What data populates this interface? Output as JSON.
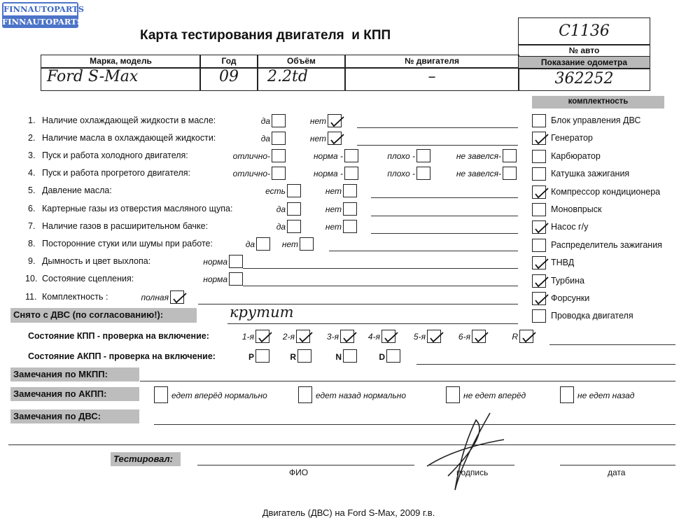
{
  "logo": {
    "line1": "FINNAUTOPARTS",
    "line2": "FINNAUTOPARTS",
    "color": "#4c74c8"
  },
  "title": "Карта тестирования двигателя  и КПП",
  "header_table": {
    "columns": [
      "Марка, модель",
      "Год",
      "Объём",
      "№ двигателя"
    ],
    "values": [
      "Ford S-Max",
      "09",
      "2.2td",
      "–"
    ]
  },
  "auto_box": {
    "auto_number": "C1136",
    "auto_number_label": "№ авто",
    "odometer_label": "Показание одометра",
    "odometer_value": "362252"
  },
  "items": [
    {
      "num": "1.",
      "label": "Наличие охлаждающей жидкости в масле:",
      "options": [
        {
          "label": "да",
          "checked": false
        },
        {
          "label": "нет",
          "checked": true
        }
      ]
    },
    {
      "num": "2.",
      "label": "Наличие масла в охлаждающей жидкости:",
      "options": [
        {
          "label": "да",
          "checked": false
        },
        {
          "label": "нет",
          "checked": true
        }
      ]
    },
    {
      "num": "3.",
      "label": "Пуск и работа холодного двигателя:",
      "options": [
        {
          "label": "отлично-",
          "checked": false
        },
        {
          "label": "норма -",
          "checked": false
        },
        {
          "label": "плохо -",
          "checked": false
        },
        {
          "label": "не завелся-",
          "checked": false
        }
      ]
    },
    {
      "num": "4.",
      "label": "Пуск и работа прогретого двигателя:",
      "options": [
        {
          "label": "отлично-",
          "checked": false
        },
        {
          "label": "норма -",
          "checked": false
        },
        {
          "label": "плохо -",
          "checked": false
        },
        {
          "label": "не завелся-",
          "checked": false
        }
      ]
    },
    {
      "num": "5.",
      "label": "Давление масла:",
      "options": [
        {
          "label": "есть",
          "checked": false
        },
        {
          "label": "нет",
          "checked": false
        }
      ]
    },
    {
      "num": "6.",
      "label": "Картерные газы из отверстия масляного щупа:",
      "options": [
        {
          "label": "да",
          "checked": false
        },
        {
          "label": "нет",
          "checked": false
        }
      ]
    },
    {
      "num": "7.",
      "label": "Наличие газов в расширительном бачке:",
      "options": [
        {
          "label": "да",
          "checked": false
        },
        {
          "label": "нет",
          "checked": false
        }
      ]
    },
    {
      "num": "8.",
      "label": "Посторонние стуки или шумы при работе:",
      "options": [
        {
          "label": "да",
          "checked": false
        },
        {
          "label": "нет",
          "checked": false
        }
      ]
    },
    {
      "num": "9.",
      "label": "Дымность и цвет выхлопа:",
      "options": [
        {
          "label": "норма",
          "checked": false
        }
      ]
    },
    {
      "num": "10.",
      "label": "Состояние сцепления:",
      "options": [
        {
          "label": "норма",
          "checked": false
        }
      ]
    },
    {
      "num": "11.",
      "label": "Комплектность :",
      "options": [
        {
          "label": "полная",
          "checked": true
        }
      ]
    }
  ],
  "completeness": {
    "title": "комплектность",
    "items": [
      {
        "label": "Блок управления ДВС",
        "checked": false
      },
      {
        "label": "Генератор",
        "checked": true
      },
      {
        "label": "Карбюратор",
        "checked": false
      },
      {
        "label": "Катушка зажигания",
        "checked": false
      },
      {
        "label": "Компрессор кондиционера",
        "checked": true
      },
      {
        "label": "Моновпрыск",
        "checked": false
      },
      {
        "label": "Насос г/у",
        "checked": true
      },
      {
        "label": "Распределитель зажигания",
        "checked": false
      },
      {
        "label": "ТНВД",
        "checked": true
      },
      {
        "label": "Турбина",
        "checked": true
      },
      {
        "label": "Форсунки",
        "checked": true
      },
      {
        "label": "Проводка двигателя",
        "checked": false
      }
    ]
  },
  "removed": {
    "label": "Снято с ДВС (по согласованию!):",
    "value": "крутит"
  },
  "manual_gearbox": {
    "label": "Состояние КПП - проверка на включение:",
    "gears": [
      {
        "label": "1-я",
        "checked": true
      },
      {
        "label": "2-я",
        "checked": true
      },
      {
        "label": "3-я",
        "checked": true
      },
      {
        "label": "4-я",
        "checked": true
      },
      {
        "label": "5-я",
        "checked": true
      },
      {
        "label": "6-я",
        "checked": true
      },
      {
        "label": "R",
        "checked": true
      }
    ]
  },
  "auto_gearbox": {
    "label": "Состояние АКПП - проверка на включение:",
    "gears": [
      {
        "label": "P",
        "checked": false
      },
      {
        "label": "R",
        "checked": false
      },
      {
        "label": "N",
        "checked": false
      },
      {
        "label": "D",
        "checked": false
      }
    ]
  },
  "remarks": {
    "manual": "Замечания по МКПП:",
    "auto": "Замечания по АКПП:",
    "auto_options": [
      {
        "label": "едет вперёд нормально",
        "checked": false
      },
      {
        "label": "едет назад нормально",
        "checked": false
      },
      {
        "label": "не едет вперёд",
        "checked": false
      },
      {
        "label": "не едет назад",
        "checked": false
      }
    ],
    "engine": "Замечания по ДВС:"
  },
  "signoff": {
    "tested_by": "Тестировал:",
    "name_label": "ФИО",
    "signature_label": "подпись",
    "date_label": "дата"
  },
  "caption": "Двигатель (ДВС) на Ford S-Max, 2009 г.в."
}
